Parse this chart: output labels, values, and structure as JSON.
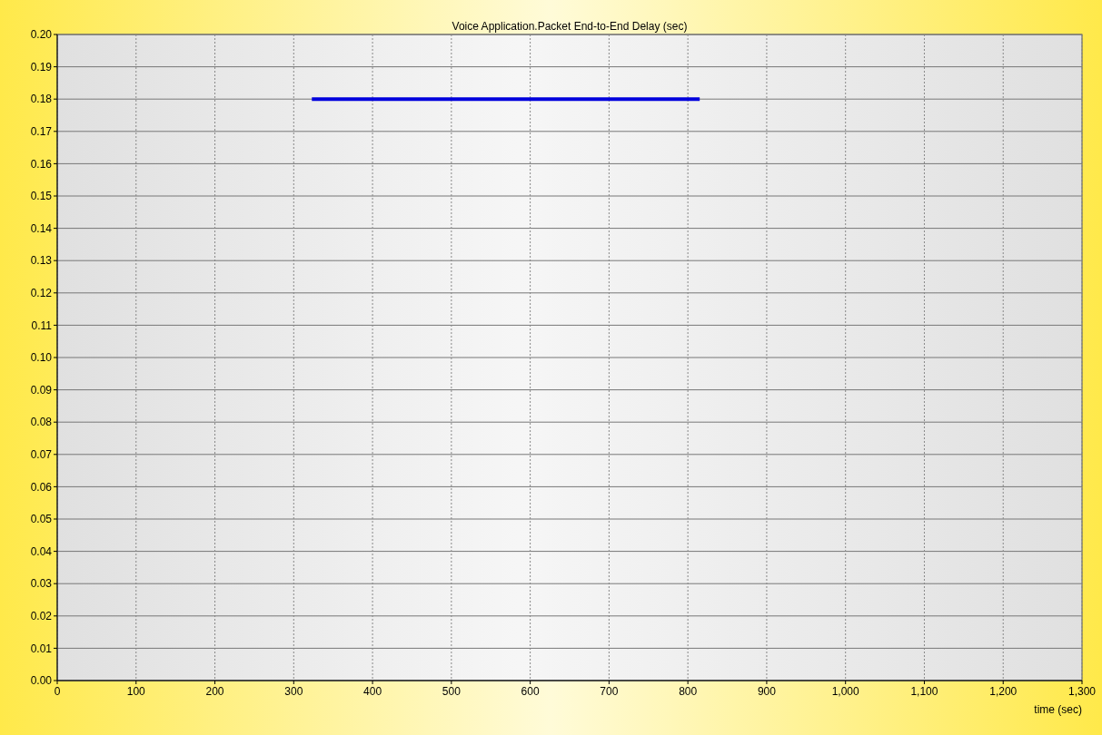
{
  "chart_data": {
    "type": "line",
    "title": "Voice Application.Packet End-to-End Delay (sec)",
    "xlabel": "time (sec)",
    "series": [
      {
        "color": "#0000dd",
        "x": [
          323,
          815
        ],
        "values": [
          0.18,
          0.18
        ]
      }
    ],
    "xlim": [
      0,
      1300
    ],
    "xticks": [
      0,
      100,
      200,
      300,
      400,
      500,
      600,
      700,
      800,
      900,
      {
        "value": 1000,
        "label": "1,000"
      },
      {
        "value": 1100,
        "label": "1,100"
      },
      {
        "value": 1200,
        "label": "1,200"
      },
      {
        "value": 1300,
        "label": "1,300"
      }
    ],
    "ylim": [
      0,
      0.2
    ],
    "yticks": [
      {
        "value": 0,
        "label": "0.00"
      },
      0.01,
      0.02,
      0.03,
      0.04,
      0.05,
      0.06,
      0.07,
      0.08,
      0.09,
      {
        "value": 0.1,
        "label": "0.10"
      },
      0.11,
      0.12,
      0.13,
      0.14,
      0.15,
      0.16,
      0.17,
      0.18,
      0.19,
      {
        "value": 0.2,
        "label": "0.20"
      }
    ],
    "grid": true,
    "marker": "none",
    "line_style": "solid"
  }
}
